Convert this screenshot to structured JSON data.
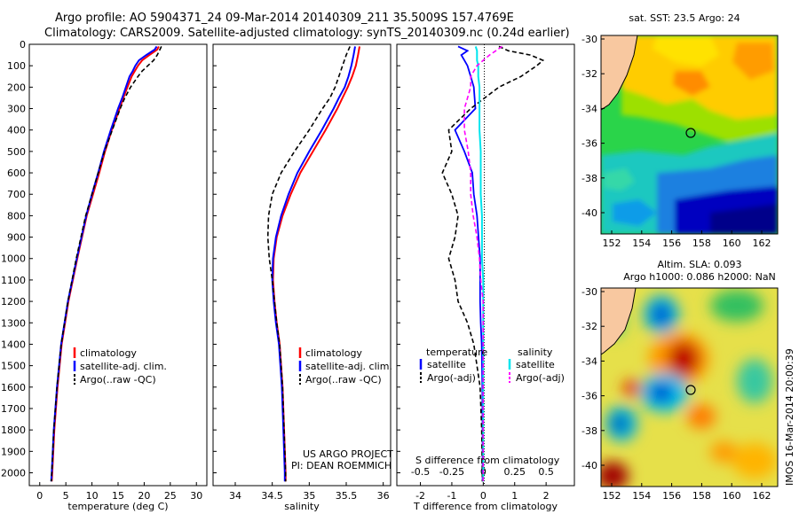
{
  "header": {
    "line1": "Argo profile: AO 5904371_24 09-Mar-2014 20140309_211 35.5009S 157.4769E",
    "line2": "Climatology: CARS2009. Satellite-adjusted climatology: synTS_20140309.nc (0.24d earlier)"
  },
  "colors": {
    "climatology": "#ff0000",
    "satellite": "#0000ff",
    "argo": "#000000",
    "s_satellite": "#00e5ee",
    "s_argo": "#ff00ff"
  },
  "depth_axis": {
    "ticks": [
      "0",
      "100",
      "200",
      "300",
      "400",
      "500",
      "600",
      "700",
      "800",
      "900",
      "1000",
      "1100",
      "1200",
      "1300",
      "1400",
      "1500",
      "1600",
      "1700",
      "1800",
      "1900",
      "2000"
    ],
    "range": [
      0,
      2060
    ]
  },
  "chart_data": [
    {
      "type": "line",
      "name": "temperature-profile",
      "xlabel": "temperature (deg C)",
      "xlim": [
        -2,
        32
      ],
      "xticks": [
        "0",
        "5",
        "10",
        "15",
        "20",
        "25",
        "30"
      ],
      "ylim": [
        0,
        2060
      ],
      "legend": [
        "climatology",
        "satellite-adj. clim.",
        "Argo(..raw -QC)"
      ],
      "depth": [
        10,
        25,
        50,
        75,
        100,
        125,
        150,
        200,
        250,
        300,
        400,
        500,
        600,
        700,
        800,
        1000,
        1200,
        1400,
        1600,
        1800,
        2000,
        2040
      ],
      "series": [
        {
          "name": "climatology",
          "values": [
            22.8,
            22.5,
            21.0,
            19.6,
            18.8,
            18.2,
            17.6,
            16.8,
            16.0,
            15.3,
            13.8,
            12.5,
            11.4,
            10.2,
            9.0,
            7.2,
            5.5,
            4.2,
            3.4,
            2.8,
            2.4,
            2.3
          ]
        },
        {
          "name": "satellite-adj. clim.",
          "values": [
            22.4,
            22.0,
            20.4,
            19.0,
            18.3,
            17.8,
            17.2,
            16.5,
            15.8,
            15.0,
            13.6,
            12.3,
            11.2,
            10.0,
            8.9,
            7.1,
            5.4,
            4.1,
            3.3,
            2.7,
            2.3,
            2.2
          ]
        },
        {
          "name": "Argo(..raw -QC)",
          "values": [
            23.3,
            23.0,
            22.5,
            21.8,
            20.7,
            19.6,
            18.8,
            17.4,
            16.3,
            15.4,
            13.9,
            12.4,
            11.2,
            10.0,
            8.8,
            7.0,
            5.4,
            4.1,
            3.3,
            2.7,
            2.3,
            2.2
          ]
        }
      ]
    },
    {
      "type": "line",
      "name": "salinity-profile",
      "xlabel": "salinity",
      "xlim": [
        33.7,
        36.1
      ],
      "xticks": [
        "34",
        "34.5",
        "35",
        "35.5",
        "36"
      ],
      "ylim": [
        0,
        2060
      ],
      "legend": [
        "climatology",
        "satellite-adj. clim.",
        "Argo(..raw -QC)"
      ],
      "annotation": [
        "US ARGO PROJECT",
        "PI: DEAN ROEMMICH"
      ],
      "depth": [
        10,
        50,
        100,
        150,
        200,
        250,
        300,
        400,
        500,
        600,
        700,
        800,
        900,
        1000,
        1100,
        1200,
        1300,
        1400,
        1600,
        1800,
        2000,
        2040
      ],
      "series": [
        {
          "name": "climatology",
          "values": [
            35.68,
            35.66,
            35.63,
            35.58,
            35.52,
            35.45,
            35.38,
            35.22,
            35.05,
            34.88,
            34.75,
            34.64,
            34.56,
            34.52,
            34.51,
            34.53,
            34.56,
            34.6,
            34.64,
            34.66,
            34.68,
            34.68
          ]
        },
        {
          "name": "satellite-adj. clim.",
          "values": [
            35.62,
            35.6,
            35.57,
            35.53,
            35.48,
            35.4,
            35.33,
            35.17,
            35.0,
            34.84,
            34.72,
            34.62,
            34.55,
            34.51,
            34.5,
            34.52,
            34.55,
            34.59,
            34.63,
            34.65,
            34.67,
            34.67
          ]
        },
        {
          "name": "Argo(..raw -QC)",
          "values": [
            35.55,
            35.5,
            35.45,
            35.4,
            35.35,
            35.28,
            35.18,
            35.0,
            34.8,
            34.62,
            34.5,
            34.45,
            34.44,
            34.46,
            34.5,
            34.53,
            34.56,
            34.6,
            34.64,
            34.66,
            34.68,
            34.68
          ]
        }
      ]
    },
    {
      "type": "line",
      "name": "difference-profile",
      "xlabel": "T difference from climatology",
      "xlabel_top": "S difference from climatology",
      "xlim": [
        -2.75,
        2.9
      ],
      "xticks": [
        "-2",
        "-1",
        "0",
        "1",
        "2"
      ],
      "s_ticks": [
        "-0.5",
        "-0.25",
        "0",
        "0.25",
        "0.5"
      ],
      "ylim": [
        0,
        2060
      ],
      "legend_groups": [
        {
          "title": "temperature",
          "items": [
            "satellite",
            "Argo(-adj)"
          ]
        },
        {
          "title": "salinity",
          "items": [
            "satellite",
            "Argo(-adj)"
          ]
        }
      ],
      "depth": [
        10,
        30,
        50,
        75,
        100,
        150,
        200,
        300,
        400,
        500,
        600,
        700,
        800,
        900,
        1000,
        1100,
        1200,
        1300,
        1400,
        1600,
        1800,
        2000,
        2040
      ],
      "series": [
        {
          "name": "T satellite",
          "values": [
            -0.8,
            -0.5,
            -0.7,
            -0.6,
            -0.5,
            -0.4,
            -0.3,
            -0.25,
            -0.9,
            -0.6,
            -0.35,
            -0.3,
            -0.2,
            -0.15,
            -0.1,
            -0.1,
            -0.1,
            -0.08,
            -0.05,
            -0.03,
            -0.02,
            -0.02,
            -0.02
          ]
        },
        {
          "name": "T Argo(-adj)",
          "values": [
            0.5,
            0.8,
            1.5,
            1.9,
            1.7,
            1.2,
            0.5,
            -0.4,
            -1.1,
            -1.0,
            -1.3,
            -1.0,
            -0.8,
            -0.9,
            -1.1,
            -0.9,
            -0.8,
            -0.5,
            -0.3,
            -0.1,
            -0.05,
            -0.03,
            -0.03
          ]
        },
        {
          "name": "S satellite",
          "values": [
            -0.06,
            -0.05,
            -0.05,
            -0.05,
            -0.04,
            -0.04,
            -0.03,
            -0.03,
            -0.03,
            -0.02,
            -0.02,
            -0.02,
            -0.01,
            -0.01,
            -0.01,
            0.0,
            0.0,
            0.0,
            0.0,
            0.0,
            0.0,
            0.0,
            0.0
          ]
        },
        {
          "name": "S Argo(-adj)",
          "values": [
            0.15,
            0.1,
            0.05,
            0.0,
            -0.05,
            -0.1,
            -0.1,
            -0.15,
            -0.15,
            -0.12,
            -0.1,
            -0.1,
            -0.08,
            -0.05,
            -0.03,
            -0.02,
            0.0,
            0.0,
            0.0,
            0.0,
            0.0,
            0.0,
            0.0
          ]
        }
      ]
    }
  ],
  "maps": {
    "sst": {
      "title": "sat. SST: 23.5 Argo: 24"
    },
    "sla": {
      "title1": "Altim. SLA: 0.093",
      "title2": "Argo h1000: 0.086 h2000: NaN"
    },
    "lat_ticks": [
      "-30",
      "-32",
      "-34",
      "-36",
      "-38",
      "-40"
    ],
    "lon_ticks": [
      "152",
      "154",
      "156",
      "158",
      "160",
      "162"
    ]
  },
  "footer": {
    "imos_label": "IMOS 16-Mar-2014 20:00:39"
  }
}
